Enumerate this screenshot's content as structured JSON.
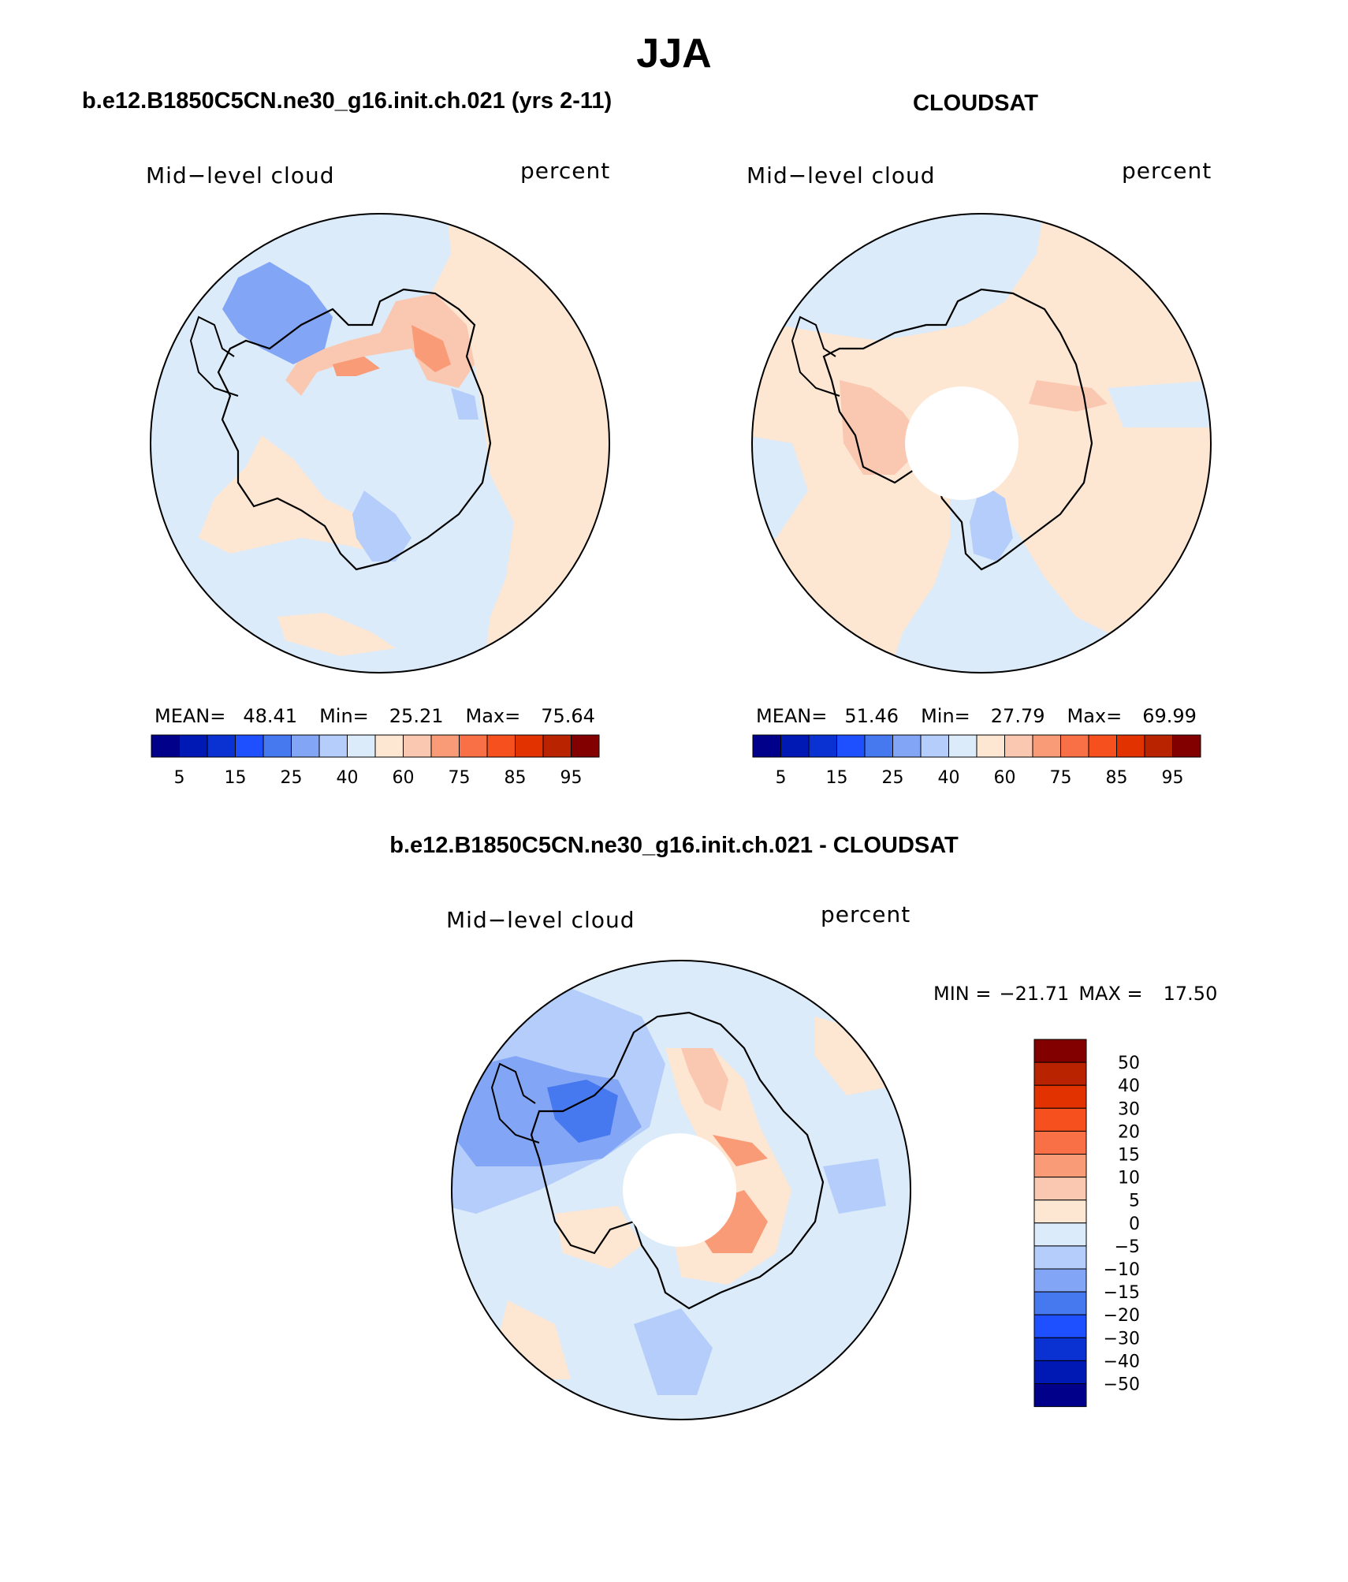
{
  "title": "JJA",
  "panels": [
    {
      "title": "b.e12.B1850C5CN.ne30_g16.init.ch.021 (yrs 2-11)",
      "variable": "Mid−level cloud",
      "units": "percent",
      "stats": {
        "mean_label": "MEAN=",
        "mean": "48.41",
        "min_label": "Min=",
        "min": "25.21",
        "max_label": "Max=",
        "max": "75.64"
      }
    },
    {
      "title": "CLOUDSAT",
      "variable": "Mid−level cloud",
      "units": "percent",
      "stats": {
        "mean_label": "MEAN=",
        "mean": "51.46",
        "min_label": "Min=",
        "min": "27.79",
        "max_label": "Max=",
        "max": "69.99"
      }
    },
    {
      "title": "b.e12.B1850C5CN.ne30_g16.init.ch.021 - CLOUDSAT",
      "variable": "Mid−level cloud",
      "units": "percent",
      "stats": {
        "min_label": "MIN =",
        "min": "−21.71",
        "max_label": "MAX =",
        "max": "17.50"
      }
    }
  ],
  "colorbar_abs": {
    "colors": [
      "#00008b",
      "#0018b4",
      "#0a32d2",
      "#1e50ff",
      "#4678f0",
      "#82a5f5",
      "#b4cdfa",
      "#dcebfa",
      "#fde6d2",
      "#fac8b0",
      "#fa9b78",
      "#fa7046",
      "#f5501e",
      "#e13200",
      "#b92300",
      "#820000"
    ],
    "labels": [
      "5",
      "15",
      "25",
      "40",
      "60",
      "75",
      "85",
      "95"
    ]
  },
  "colorbar_diff": {
    "colors": [
      "#820000",
      "#b92300",
      "#e13200",
      "#f5501e",
      "#fa7046",
      "#fa9b78",
      "#fac8b0",
      "#fde6d2",
      "#dcebfa",
      "#b4cdfa",
      "#82a5f5",
      "#4678f0",
      "#1e50ff",
      "#0a32d2",
      "#0018b4",
      "#00008b"
    ],
    "labels": [
      "50",
      "40",
      "30",
      "20",
      "15",
      "10",
      "5",
      "0",
      "−5",
      "−10",
      "−15",
      "−20",
      "−30",
      "−40",
      "−50"
    ]
  },
  "map_colors": {
    "blue_light": "#dcebfa",
    "blue_mid": "#b4cdfa",
    "blue_strong": "#82a5f5",
    "blue_dark": "#4678f0",
    "red_light": "#fde6d2",
    "red_mid": "#fac8b0",
    "red_strong": "#fa9b78",
    "red_dark": "#f5501e"
  }
}
